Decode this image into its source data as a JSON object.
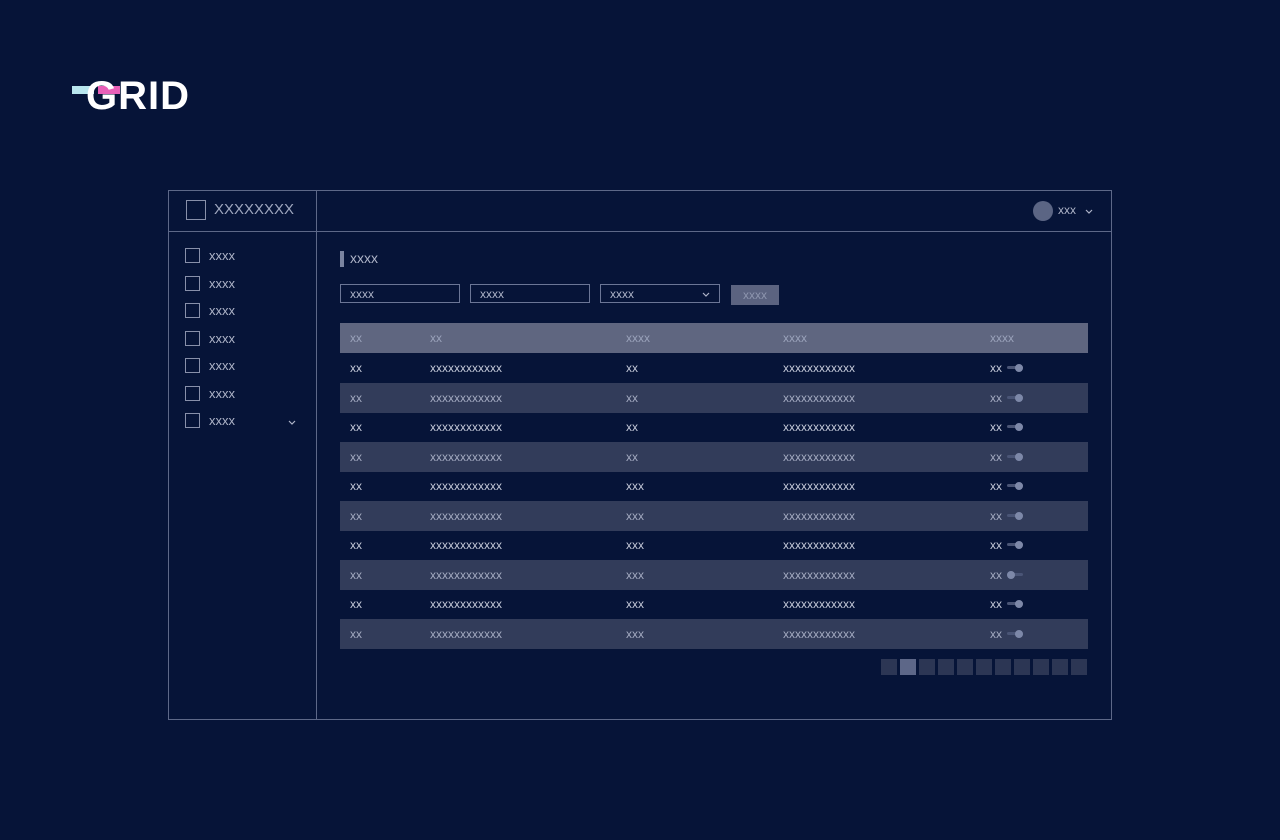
{
  "logo": "GRID",
  "app": {
    "title": "XXXXXXXX",
    "user": "xxx"
  },
  "sidebar": {
    "items": [
      "xxxx",
      "xxxx",
      "xxxx",
      "xxxx",
      "xxxx",
      "xxxx",
      "xxxx"
    ]
  },
  "content": {
    "title": "xxxx",
    "filters": {
      "inputs": [
        "xxxx",
        "xxxx"
      ],
      "select": "xxxx",
      "button": "xxxx"
    },
    "table": {
      "headers": [
        "xx",
        "xx",
        "xxxx",
        "xxxx",
        "xxxx"
      ],
      "rows": [
        [
          "xx",
          "xxxxxxxxxxxx",
          "xx",
          "xxxxxxxxxxxx",
          "xx"
        ],
        [
          "xx",
          "xxxxxxxxxxxx",
          "xx",
          "xxxxxxxxxxxx",
          "xx"
        ],
        [
          "xx",
          "xxxxxxxxxxxx",
          "xx",
          "xxxxxxxxxxxx",
          "xx"
        ],
        [
          "xx",
          "xxxxxxxxxxxx",
          "xx",
          "xxxxxxxxxxxx",
          "xx"
        ],
        [
          "xx",
          "xxxxxxxxxxxx",
          "xxx",
          "xxxxxxxxxxxx",
          "xx"
        ],
        [
          "xx",
          "xxxxxxxxxxxx",
          "xxx",
          "xxxxxxxxxxxx",
          "xx"
        ],
        [
          "xx",
          "xxxxxxxxxxxx",
          "xxx",
          "xxxxxxxxxxxx",
          "xx"
        ],
        [
          "xx",
          "xxxxxxxxxxxx",
          "xxx",
          "xxxxxxxxxxxx",
          "xx"
        ],
        [
          "xx",
          "xxxxxxxxxxxx",
          "xxx",
          "xxxxxxxxxxxx",
          "xx"
        ],
        [
          "xx",
          "xxxxxxxxxxxx",
          "xxx",
          "xxxxxxxxxxxx",
          "xx"
        ]
      ],
      "toggles": [
        true,
        true,
        true,
        true,
        true,
        true,
        true,
        false,
        true,
        true
      ]
    }
  }
}
